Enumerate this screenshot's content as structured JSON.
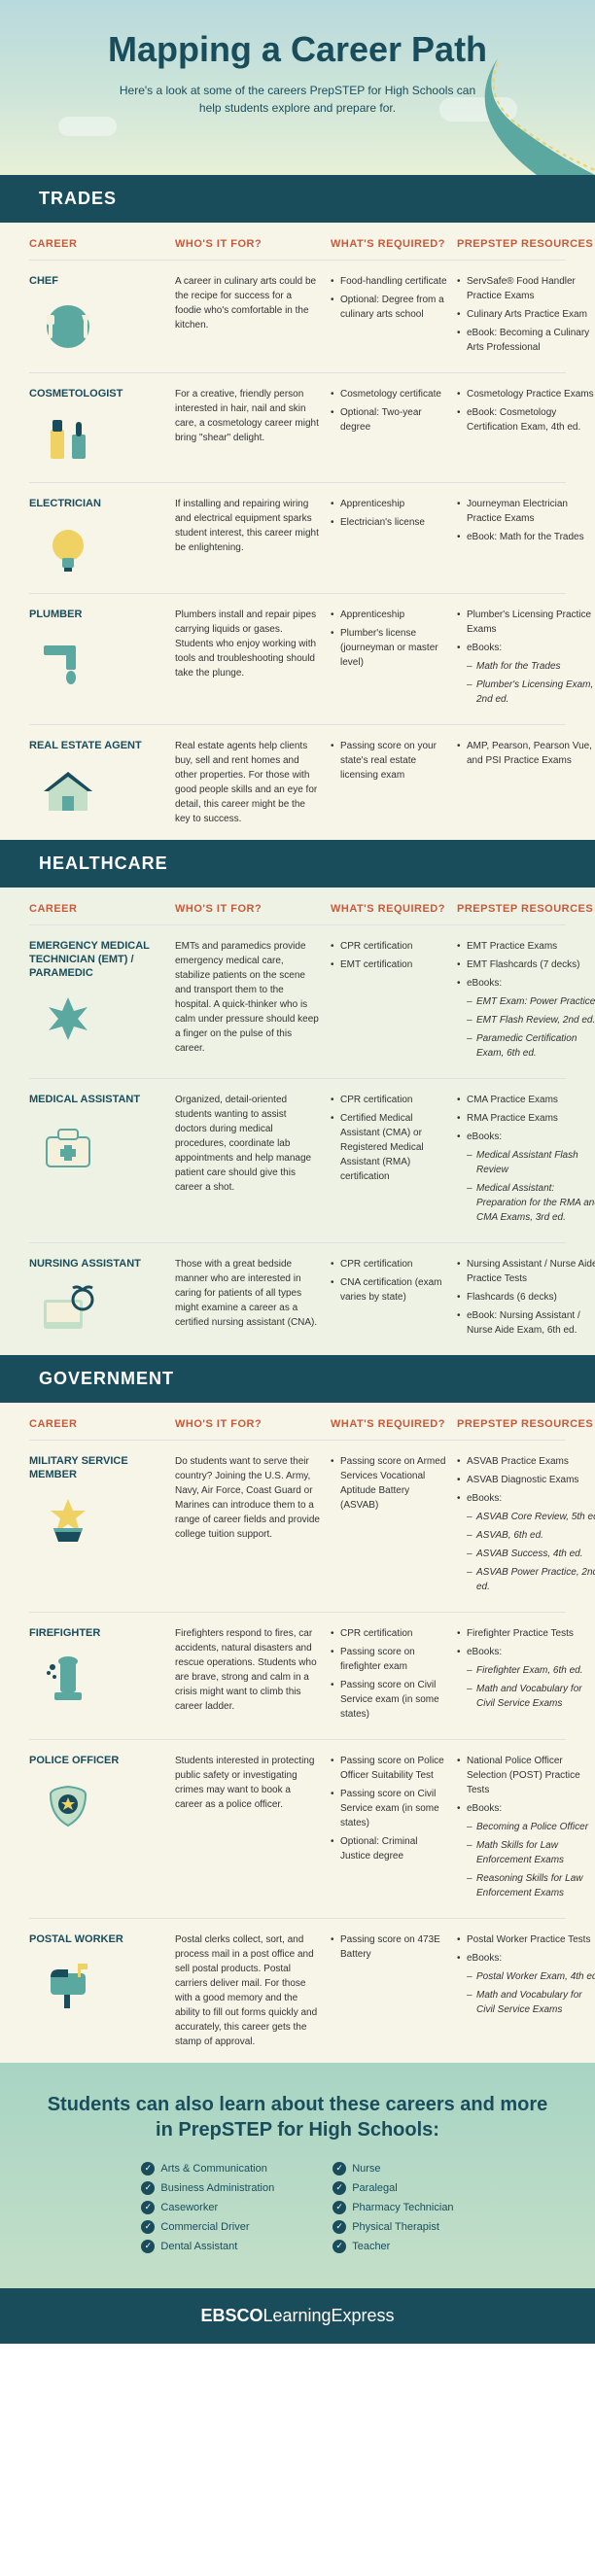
{
  "hero": {
    "title": "Mapping a Career Path",
    "subtitle": "Here's a look at some of the careers PrepSTEP for High Schools can help students explore and prepare for."
  },
  "colHeaders": {
    "career": "CAREER",
    "who": "WHO'S IT FOR?",
    "required": "WHAT'S REQUIRED?",
    "resources": "PREPSTEP RESOURCES"
  },
  "sections": [
    {
      "name": "TRADES",
      "bgClass": "pale-bg",
      "rows": [
        {
          "title": "CHEF",
          "icon": "chef",
          "who": "A career in culinary arts could be the recipe for success for a foodie who's comfortable in the kitchen.",
          "required": [
            "Food-handling certificate",
            "Optional: Degree from a culinary arts school"
          ],
          "resources": [
            "ServSafe® Food Handler Practice Exams",
            "Culinary Arts Practice Exam",
            "eBook: Becoming a Culinary Arts Professional"
          ]
        },
        {
          "title": "COSMETOLOGIST",
          "icon": "cosmetologist",
          "who": "For a creative, friendly person interested in hair, nail and skin care, a cosmetology career might bring \"shear\" delight.",
          "required": [
            "Cosmetology certificate",
            "Optional: Two-year degree"
          ],
          "resources": [
            "Cosmetology Practice Exams",
            "eBook: Cosmetology Certification Exam, 4th ed."
          ]
        },
        {
          "title": "ELECTRICIAN",
          "icon": "electrician",
          "who": "If installing and repairing wiring and electrical equipment sparks student interest, this career might be enlightening.",
          "required": [
            "Apprenticeship",
            "Electrician's license"
          ],
          "resources": [
            "Journeyman Electrician Practice Exams",
            "eBook: Math for the Trades"
          ]
        },
        {
          "title": "PLUMBER",
          "icon": "plumber",
          "who": "Plumbers install and repair pipes carrying liquids or gases. Students who enjoy working with tools and troubleshooting should take the plunge.",
          "required": [
            "Apprenticeship",
            "Plumber's license (journeyman or master level)"
          ],
          "resources": [
            "Plumber's Licensing Practice Exams",
            "eBooks:"
          ],
          "resourcesSub": [
            "Math for the Trades",
            "Plumber's Licensing Exam, 2nd ed."
          ]
        },
        {
          "title": "REAL ESTATE AGENT",
          "icon": "realestate",
          "who": "Real estate agents help clients buy, sell and rent homes and other properties. For those with good people skills and an eye for detail, this career might be the key to success.",
          "required": [
            "Passing score on your state's real estate licensing exam"
          ],
          "resources": [
            "AMP, Pearson, Pearson Vue, and PSI Practice Exams"
          ]
        }
      ]
    },
    {
      "name": "HEALTHCARE",
      "bgClass": "pale-green-bg",
      "rows": [
        {
          "title": "EMERGENCY MEDICAL TECHNICIAN (EMT) / PARAMEDIC",
          "icon": "emt",
          "who": "EMTs and paramedics provide emergency medical care, stabilize patients on the scene and transport them to the hospital. A quick-thinker who is calm under pressure should keep a finger on the pulse of this career.",
          "required": [
            "CPR certification",
            "EMT certification"
          ],
          "resources": [
            "EMT Practice Exams",
            "EMT Flashcards (7 decks)",
            "eBooks:"
          ],
          "resourcesSub": [
            "EMT Exam: Power Practice",
            "EMT Flash Review, 2nd ed.",
            "Paramedic Certification Exam, 6th ed."
          ]
        },
        {
          "title": "MEDICAL ASSISTANT",
          "icon": "medassist",
          "who": "Organized, detail-oriented students wanting to assist doctors during medical procedures, coordinate lab appointments and help manage patient care should give this career a shot.",
          "required": [
            "CPR certification",
            "Certified Medical Assistant (CMA) or Registered Medical Assistant (RMA) certification"
          ],
          "resources": [
            "CMA Practice Exams",
            "RMA Practice Exams",
            "eBooks:"
          ],
          "resourcesSub": [
            "Medical Assistant Flash Review",
            "Medical Assistant: Preparation for the RMA and CMA Exams, 3rd ed."
          ]
        },
        {
          "title": "NURSING ASSISTANT",
          "icon": "nursing",
          "who": "Those with a great bedside manner who are interested in caring for patients of all types might examine a career as a certified nursing assistant (CNA).",
          "required": [
            "CPR certification",
            "CNA certification (exam varies by state)"
          ],
          "resources": [
            "Nursing Assistant / Nurse Aide Practice Tests",
            "Flashcards (6 decks)",
            "eBook: Nursing Assistant / Nurse Aide Exam, 6th ed."
          ]
        }
      ]
    },
    {
      "name": "GOVERNMENT",
      "bgClass": "pale-bg",
      "rows": [
        {
          "title": "MILITARY SERVICE MEMBER",
          "icon": "military",
          "who": "Do students want to serve their country? Joining the U.S. Army, Navy, Air Force, Coast Guard or Marines can introduce them to a range of career fields and provide college tuition support.",
          "required": [
            "Passing score on Armed Services Vocational Aptitude Battery (ASVAB)"
          ],
          "resources": [
            "ASVAB Practice Exams",
            "ASVAB Diagnostic Exams",
            "eBooks:"
          ],
          "resourcesSub": [
            "ASVAB Core Review, 5th ed.",
            "ASVAB, 6th ed.",
            "ASVAB Success, 4th ed.",
            "ASVAB Power Practice, 2nd ed."
          ]
        },
        {
          "title": "FIREFIGHTER",
          "icon": "firefighter",
          "who": "Firefighters respond to fires, car accidents, natural disasters and rescue operations. Students who are brave, strong and calm in a crisis might want to climb this career ladder.",
          "required": [
            "CPR certification",
            "Passing score on firefighter exam",
            "Passing score on Civil Service exam (in some states)"
          ],
          "resources": [
            "Firefighter Practice Tests",
            "eBooks:"
          ],
          "resourcesSub": [
            "Firefighter Exam, 6th ed.",
            "Math and Vocabulary for Civil Service Exams"
          ]
        },
        {
          "title": "POLICE OFFICER",
          "icon": "police",
          "who": "Students interested in protecting public safety or investigating crimes may want to book a career as a police officer.",
          "required": [
            "Passing score on Police Officer Suitability Test",
            "Passing score on Civil Service exam (in some states)",
            "Optional: Criminal Justice degree"
          ],
          "resources": [
            "National Police Officer Selection (POST) Practice Tests",
            "eBooks:"
          ],
          "resourcesSub": [
            "Becoming a Police Officer",
            "Math Skills for Law Enforcement Exams",
            "Reasoning Skills for Law Enforcement Exams"
          ]
        },
        {
          "title": "POSTAL WORKER",
          "icon": "postal",
          "who": "Postal clerks collect, sort, and process mail in a post office and sell postal products. Postal carriers deliver mail. For those with a good memory and the ability to fill out forms quickly and accurately, this career gets the stamp of approval.",
          "required": [
            "Passing score on 473E Battery"
          ],
          "resources": [
            "Postal Worker Practice Tests",
            "eBooks:"
          ],
          "resourcesSub": [
            "Postal Worker Exam, 4th ed.",
            "Math and Vocabulary for Civil Service Exams"
          ]
        }
      ]
    }
  ],
  "footer": {
    "heading": "Students can also learn about these careers and more in PrepSTEP for High Schools:",
    "left": [
      "Arts & Communication",
      "Business Administration",
      "Caseworker",
      "Commercial Driver",
      "Dental Assistant"
    ],
    "right": [
      "Nurse",
      "Paralegal",
      "Pharmacy Technician",
      "Physical Therapist",
      "Teacher"
    ]
  },
  "brand": {
    "bold": "EBSCO",
    "light": "LearningExpress"
  },
  "iconColors": {
    "teal": "#5ba8a0",
    "darkTeal": "#1a4d5c",
    "yellow": "#f0d264",
    "cream": "#f5f0dc",
    "lightGreen": "#c4dfc8"
  }
}
